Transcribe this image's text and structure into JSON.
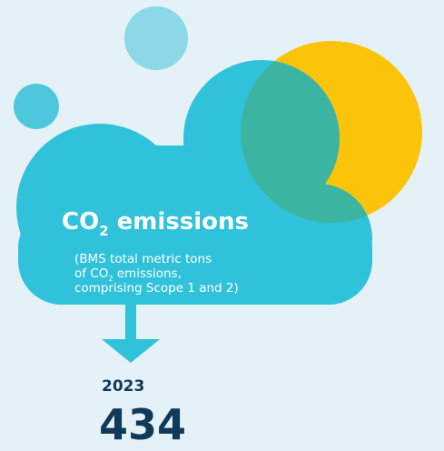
{
  "title": {
    "main": "CO",
    "sub": "2",
    "rest": " emissions"
  },
  "description": {
    "line1": "(BMS total metric tons",
    "line2_main": "of CO",
    "line2_sub": "2",
    "line2_rest": " emissions,",
    "line3": "comprising Scope 1 and 2)"
  },
  "metric": {
    "year": "2023",
    "value": 434
  }
}
